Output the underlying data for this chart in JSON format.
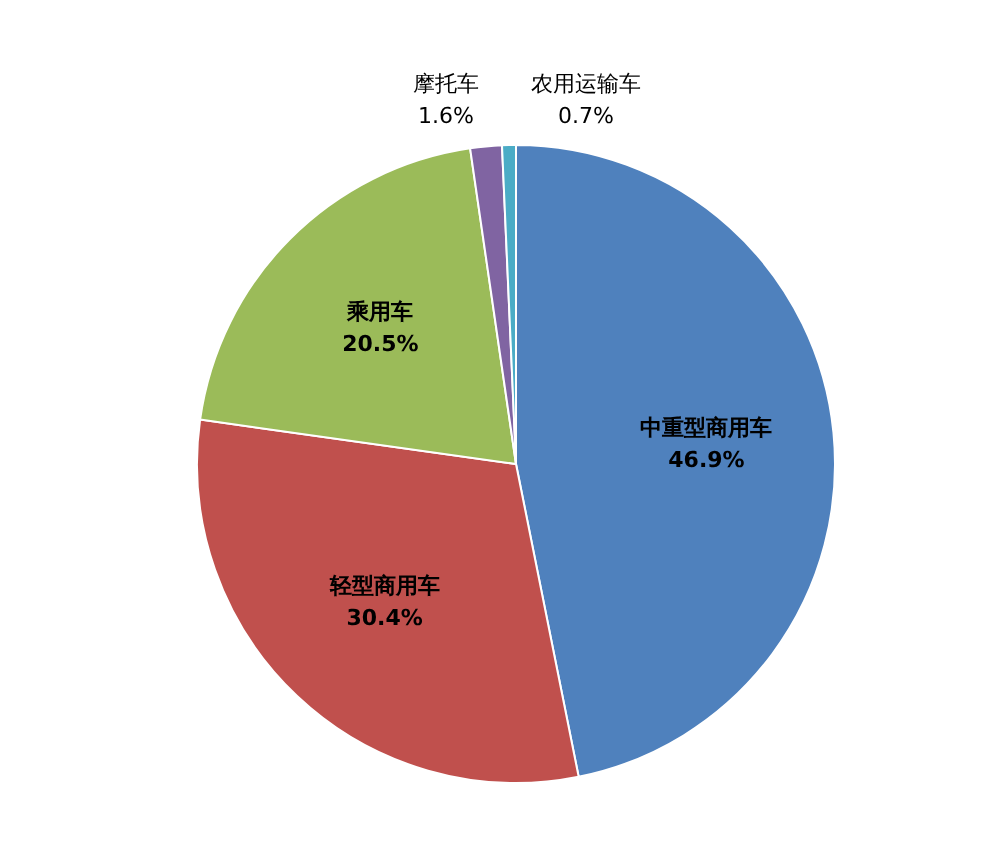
{
  "chart_data": {
    "type": "pie",
    "categories": [
      "中重型商用车",
      "轻型商用车",
      "乘用车",
      "摩托车",
      "农用运输车"
    ],
    "values": [
      46.9,
      30.4,
      20.5,
      1.6,
      0.7
    ],
    "value_labels": [
      "46.9%",
      "30.4%",
      "20.5%",
      "1.6%",
      "0.7%"
    ],
    "colors": [
      "#4f81bd",
      "#c0504d",
      "#9bbb59",
      "#8064a2",
      "#4bacc6"
    ],
    "legend": false
  }
}
